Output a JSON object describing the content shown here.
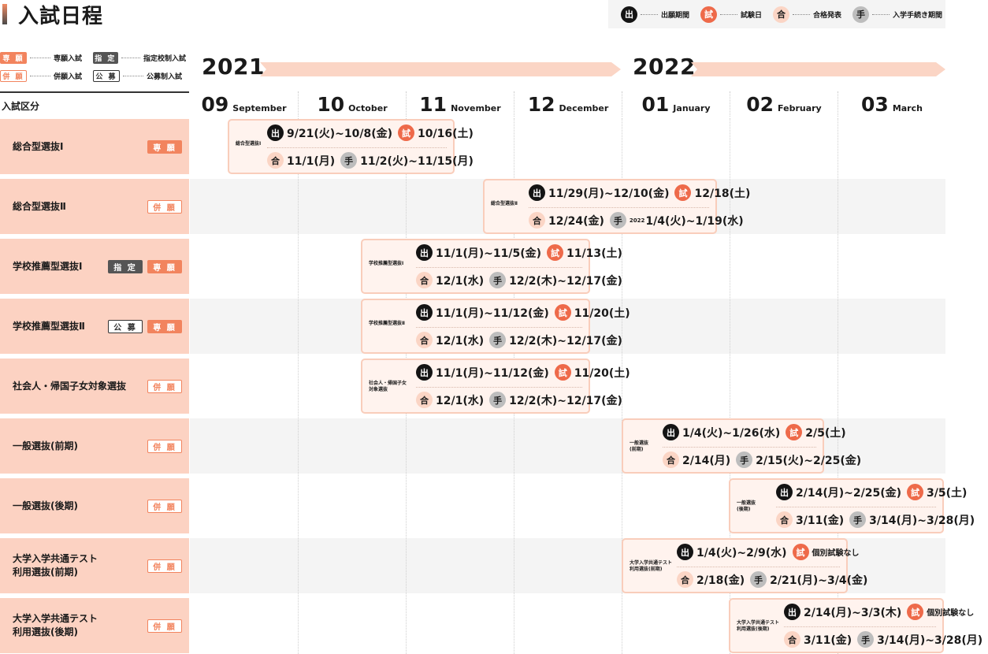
{
  "title": "入試日程",
  "legend": [
    {
      "icon": "出",
      "label": "出願期間"
    },
    {
      "icon": "試",
      "label": "試験日"
    },
    {
      "icon": "合",
      "label": "合格発表"
    },
    {
      "icon": "手",
      "label": "入学手続き期間"
    }
  ],
  "tag_legend": [
    {
      "tag": "専 願",
      "label": "専願入試"
    },
    {
      "tag": "指 定",
      "label": "指定校制入試"
    },
    {
      "tag": "併 願",
      "label": "併願入試"
    },
    {
      "tag": "公 募",
      "label": "公募制入試"
    }
  ],
  "column_header": "入試区分",
  "years": [
    "2021",
    "2022"
  ],
  "months": [
    {
      "num": "09",
      "name": "September"
    },
    {
      "num": "10",
      "name": "October"
    },
    {
      "num": "11",
      "name": "November"
    },
    {
      "num": "12",
      "name": "December"
    },
    {
      "num": "01",
      "name": "January"
    },
    {
      "num": "02",
      "name": "February"
    },
    {
      "num": "03",
      "name": "March"
    }
  ],
  "rows": [
    {
      "name": "総合型選抜Ⅰ",
      "tags": [
        "専 願"
      ],
      "box_label": "総合型選抜Ⅰ",
      "apply": "9/21(火)~10/8(金)",
      "exam": "10/16(土)",
      "pass": "11/1(月)",
      "proc": "11/2(火)~11/15(月)",
      "proc_prefix": ""
    },
    {
      "name": "総合型選抜Ⅱ",
      "tags": [
        "併 願"
      ],
      "box_label": "総合型選抜Ⅱ",
      "apply": "11/29(月)~12/10(金)",
      "exam": "12/18(土)",
      "pass": "12/24(金)",
      "proc": "1/4(火)~1/19(水)",
      "proc_prefix": "2022"
    },
    {
      "name": "学校推薦型選抜Ⅰ",
      "tags": [
        "指 定",
        "専 願"
      ],
      "box_label": "学校推薦型選抜Ⅰ",
      "apply": "11/1(月)~11/5(金)",
      "exam": "11/13(土)",
      "pass": "12/1(水)",
      "proc": "12/2(木)~12/17(金)",
      "proc_prefix": ""
    },
    {
      "name": "学校推薦型選抜Ⅱ",
      "tags": [
        "公 募",
        "専 願"
      ],
      "box_label": "学校推薦型選抜Ⅱ",
      "apply": "11/1(月)~11/12(金)",
      "exam": "11/20(土)",
      "pass": "12/1(水)",
      "proc": "12/2(木)~12/17(金)",
      "proc_prefix": ""
    },
    {
      "name": "社会人・帰国子女対象選抜",
      "tags": [
        "併 願"
      ],
      "box_label": "社会人・帰国子女\n対象選抜",
      "apply": "11/1(月)~11/12(金)",
      "exam": "11/20(土)",
      "pass": "12/1(水)",
      "proc": "12/2(木)~12/17(金)",
      "proc_prefix": ""
    },
    {
      "name": "一般選抜(前期)",
      "tags": [
        "併 願"
      ],
      "box_label": "一般選抜\n(前期)",
      "apply": "1/4(火)~1/26(水)",
      "exam": "2/5(土)",
      "pass": "2/14(月)",
      "proc": "2/15(火)~2/25(金)",
      "proc_prefix": ""
    },
    {
      "name": "一般選抜(後期)",
      "tags": [
        "併 願"
      ],
      "box_label": "一般選抜\n(後期)",
      "apply": "2/14(月)~2/25(金)",
      "exam": "3/5(土)",
      "pass": "3/11(金)",
      "proc": "3/14(月)~3/28(月)",
      "proc_prefix": ""
    },
    {
      "name": "大学入学共通テスト\n利用選抜(前期)",
      "tags": [
        "併 願"
      ],
      "box_label": "大学入学共通テスト\n利用選抜(前期)",
      "apply": "1/4(火)~2/9(水)",
      "exam": "個別試験なし",
      "pass": "2/18(金)",
      "proc": "2/21(月)~3/4(金)",
      "proc_prefix": ""
    },
    {
      "name": "大学入学共通テスト\n利用選抜(後期)",
      "tags": [
        "併 願"
      ],
      "box_label": "大学入学共通テスト\n利用選抜(後期)",
      "apply": "2/14(月)~3/3(木)",
      "exam": "個別試験なし",
      "pass": "3/11(金)",
      "proc": "3/14(月)~3/28(月)",
      "proc_prefix": ""
    }
  ],
  "colors": {
    "accent": "#f2845e",
    "exam": "#ee6a4a",
    "label_bg": "#fcd2c2",
    "box_bg": "#fff3ee",
    "box_border": "#f9cdbb"
  }
}
